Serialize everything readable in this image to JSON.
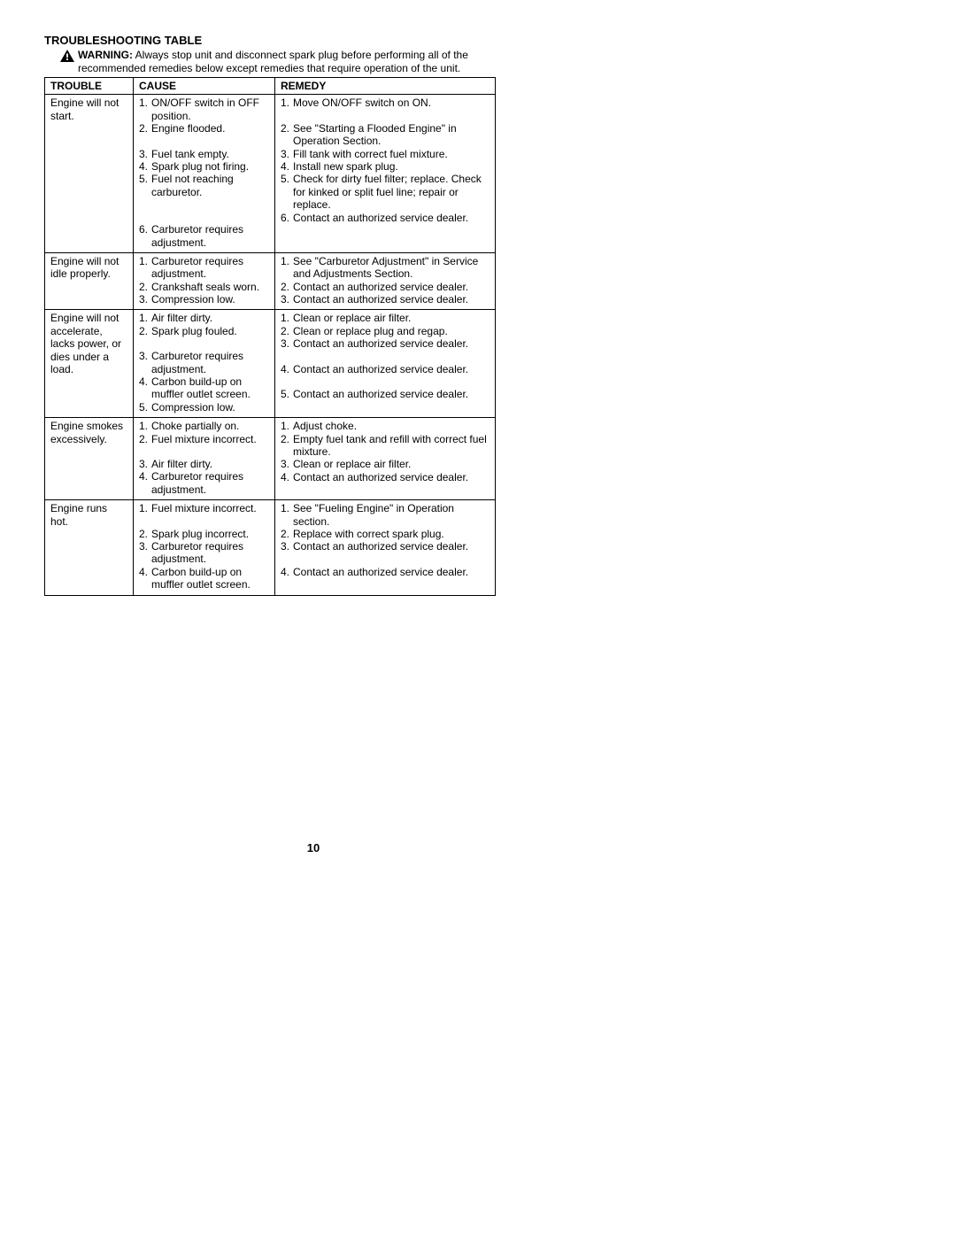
{
  "title": "TROUBLESHOOTING TABLE",
  "warning": {
    "label": "WARNING:",
    "text": " Always stop unit and disconnect spark plug before performing all of the recommended remedies below except remedies that require operation of the unit."
  },
  "headers": {
    "trouble": "TROUBLE",
    "cause": "CAUSE",
    "remedy": "REMEDY"
  },
  "rows": [
    {
      "trouble": "Engine will not start.",
      "causes": [
        "ON/OFF switch in OFF position.",
        "Engine flooded.",
        "Fuel tank empty.",
        "Spark plug not firing.",
        "Fuel not reaching carburetor.",
        "Carburetor requires adjustment."
      ],
      "remedies": [
        "Move ON/OFF switch on ON.",
        "See \"Starting a Flooded Engine\" in Operation Section.",
        "Fill tank with correct fuel mixture.",
        "Install new spark plug.",
        "Check for dirty fuel filter; replace. Check for kinked or split fuel line; repair or replace.",
        "Contact an authorized service dealer."
      ],
      "cause_spacing": [
        0,
        0,
        14,
        0,
        0,
        28
      ],
      "remedy_spacing": [
        0,
        14,
        0,
        0,
        0,
        0
      ]
    },
    {
      "trouble": "Engine will not idle properly.",
      "causes": [
        "Carburetor requires adjustment.",
        "Crankshaft seals worn.",
        "Compression low."
      ],
      "remedies": [
        "See \"Carburetor Adjustment\" in Service and Adjustments Section.",
        "Contact an authorized service dealer.",
        "Contact an authorized service dealer."
      ],
      "cause_spacing": [
        0,
        0,
        0
      ],
      "remedy_spacing": [
        0,
        0,
        0
      ]
    },
    {
      "trouble": "Engine will not accelerate, lacks power, or dies under a load.",
      "causes": [
        "Air filter dirty.",
        "Spark plug fouled.",
        "Carburetor requires adjustment.",
        "Carbon build-up on muffler outlet screen.",
        "Compression low."
      ],
      "remedies": [
        "Clean or replace air filter.",
        "Clean or replace plug and regap.",
        "Contact an authorized service dealer.",
        "Contact an authorized service dealer.",
        "Contact an authorized service dealer."
      ],
      "cause_spacing": [
        0,
        0,
        14,
        0,
        0
      ],
      "remedy_spacing": [
        0,
        0,
        0,
        14,
        14
      ]
    },
    {
      "trouble": "Engine smokes excessively.",
      "causes": [
        "Choke partially on.",
        "Fuel mixture incorrect.",
        "Air filter dirty.",
        "Carburetor requires adjustment."
      ],
      "remedies": [
        "Adjust choke.",
        "Empty fuel tank and refill with correct fuel mixture.",
        "Clean or replace air filter.",
        "Contact an authorized service dealer."
      ],
      "cause_spacing": [
        0,
        0,
        14,
        0
      ],
      "remedy_spacing": [
        0,
        0,
        0,
        0
      ]
    },
    {
      "trouble": "Engine runs hot.",
      "causes": [
        "Fuel mixture incorrect.",
        "Spark plug incorrect.",
        "Carburetor requires adjustment.",
        "Carbon build-up on muffler outlet screen."
      ],
      "remedies": [
        "See \"Fueling Engine\" in Operation section.",
        "Replace with correct spark plug.",
        "Contact an authorized service dealer.",
        "Contact an authorized service dealer."
      ],
      "cause_spacing": [
        0,
        14,
        0,
        0
      ],
      "remedy_spacing": [
        0,
        0,
        0,
        14
      ]
    }
  ],
  "page_number": "10",
  "colors": {
    "text": "#000000",
    "background": "#ffffff",
    "border": "#000000"
  }
}
